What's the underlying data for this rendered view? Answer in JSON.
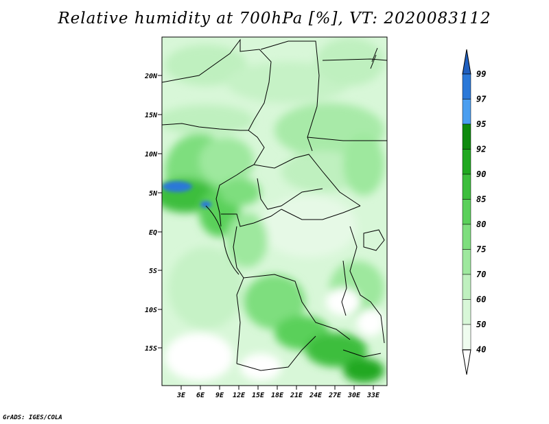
{
  "title": "Relative humidity at 700hPa [%], VT: 2020083112",
  "credit": "GrADS: IGES/COLA",
  "map": {
    "variable": "Relative humidity",
    "level": "700hPa",
    "units": "%",
    "valid_time": "2020083112",
    "lat_labels": [
      "20N",
      "15N",
      "10N",
      "5N",
      "EQ",
      "5S",
      "10S",
      "15S"
    ],
    "lon_labels": [
      "3E",
      "6E",
      "9E",
      "12E",
      "15E",
      "18E",
      "21E",
      "24E",
      "27E",
      "30E",
      "33E"
    ]
  },
  "colorbar": {
    "levels": [
      "99",
      "97",
      "95",
      "92",
      "90",
      "85",
      "80",
      "75",
      "70",
      "60",
      "50",
      "40"
    ],
    "colors": [
      "#1f5fbf",
      "#2a78d8",
      "#4a9ef0",
      "#0e8a0e",
      "#20a820",
      "#3cbe3c",
      "#5ad05a",
      "#7ede7e",
      "#9ee89e",
      "#bff0bf",
      "#d8f7d8",
      "#effcef"
    ]
  }
}
